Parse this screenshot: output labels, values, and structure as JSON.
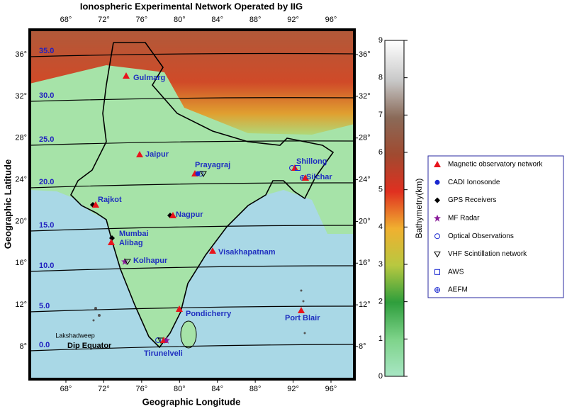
{
  "title": "Ionospheric Experimental Network Operated by IIG",
  "x_axis_label": "Geographic Longitude",
  "y_axis_label": "Geographic Latitude",
  "lon_ticks": [
    {
      "value": 68,
      "label": "68°"
    },
    {
      "value": 72,
      "label": "72°"
    },
    {
      "value": 76,
      "label": "76°"
    },
    {
      "value": 80,
      "label": "80°"
    },
    {
      "value": 84,
      "label": "84°"
    },
    {
      "value": 88,
      "label": "88°"
    },
    {
      "value": 92,
      "label": "92°"
    },
    {
      "value": 96,
      "label": "96°"
    }
  ],
  "lat_ticks": [
    {
      "value": 8,
      "label": "8°"
    },
    {
      "value": 12,
      "label": "12°"
    },
    {
      "value": 16,
      "label": "16°"
    },
    {
      "value": 20,
      "label": "20°"
    },
    {
      "value": 24,
      "label": "24°"
    },
    {
      "value": 28,
      "label": "28°"
    },
    {
      "value": 32,
      "label": "32°"
    },
    {
      "value": 36,
      "label": "36°"
    }
  ],
  "dip_labels": [
    "35.0",
    "30.0",
    "25.0",
    "20.0",
    "15.0",
    "10.0",
    "5.0",
    "0.0"
  ],
  "stations": [
    "Gulmarg",
    "Jaipur",
    "Prayagraj",
    "Shillong",
    "Silchar",
    "Rajkot",
    "Nagpur",
    "Mumbai",
    "Alibag",
    "Kolhapur",
    "Visakhapatnam",
    "Pondicherry",
    "Port Blair",
    "Tirunelveli"
  ],
  "annotations": [
    "Lakshadweep",
    "Dip Equator"
  ],
  "colorbar": {
    "label": "Bathymetry(km)",
    "ticks": [
      0,
      1,
      2,
      3,
      4,
      5,
      6,
      7,
      8,
      9
    ]
  },
  "legend": [
    "Magnetic observatory network",
    "CADI Ionosonde",
    "GPS Receivers",
    "MF Radar",
    "Optical Observations",
    "VHF Scintillation network",
    "AWS",
    "AEFM"
  ]
}
